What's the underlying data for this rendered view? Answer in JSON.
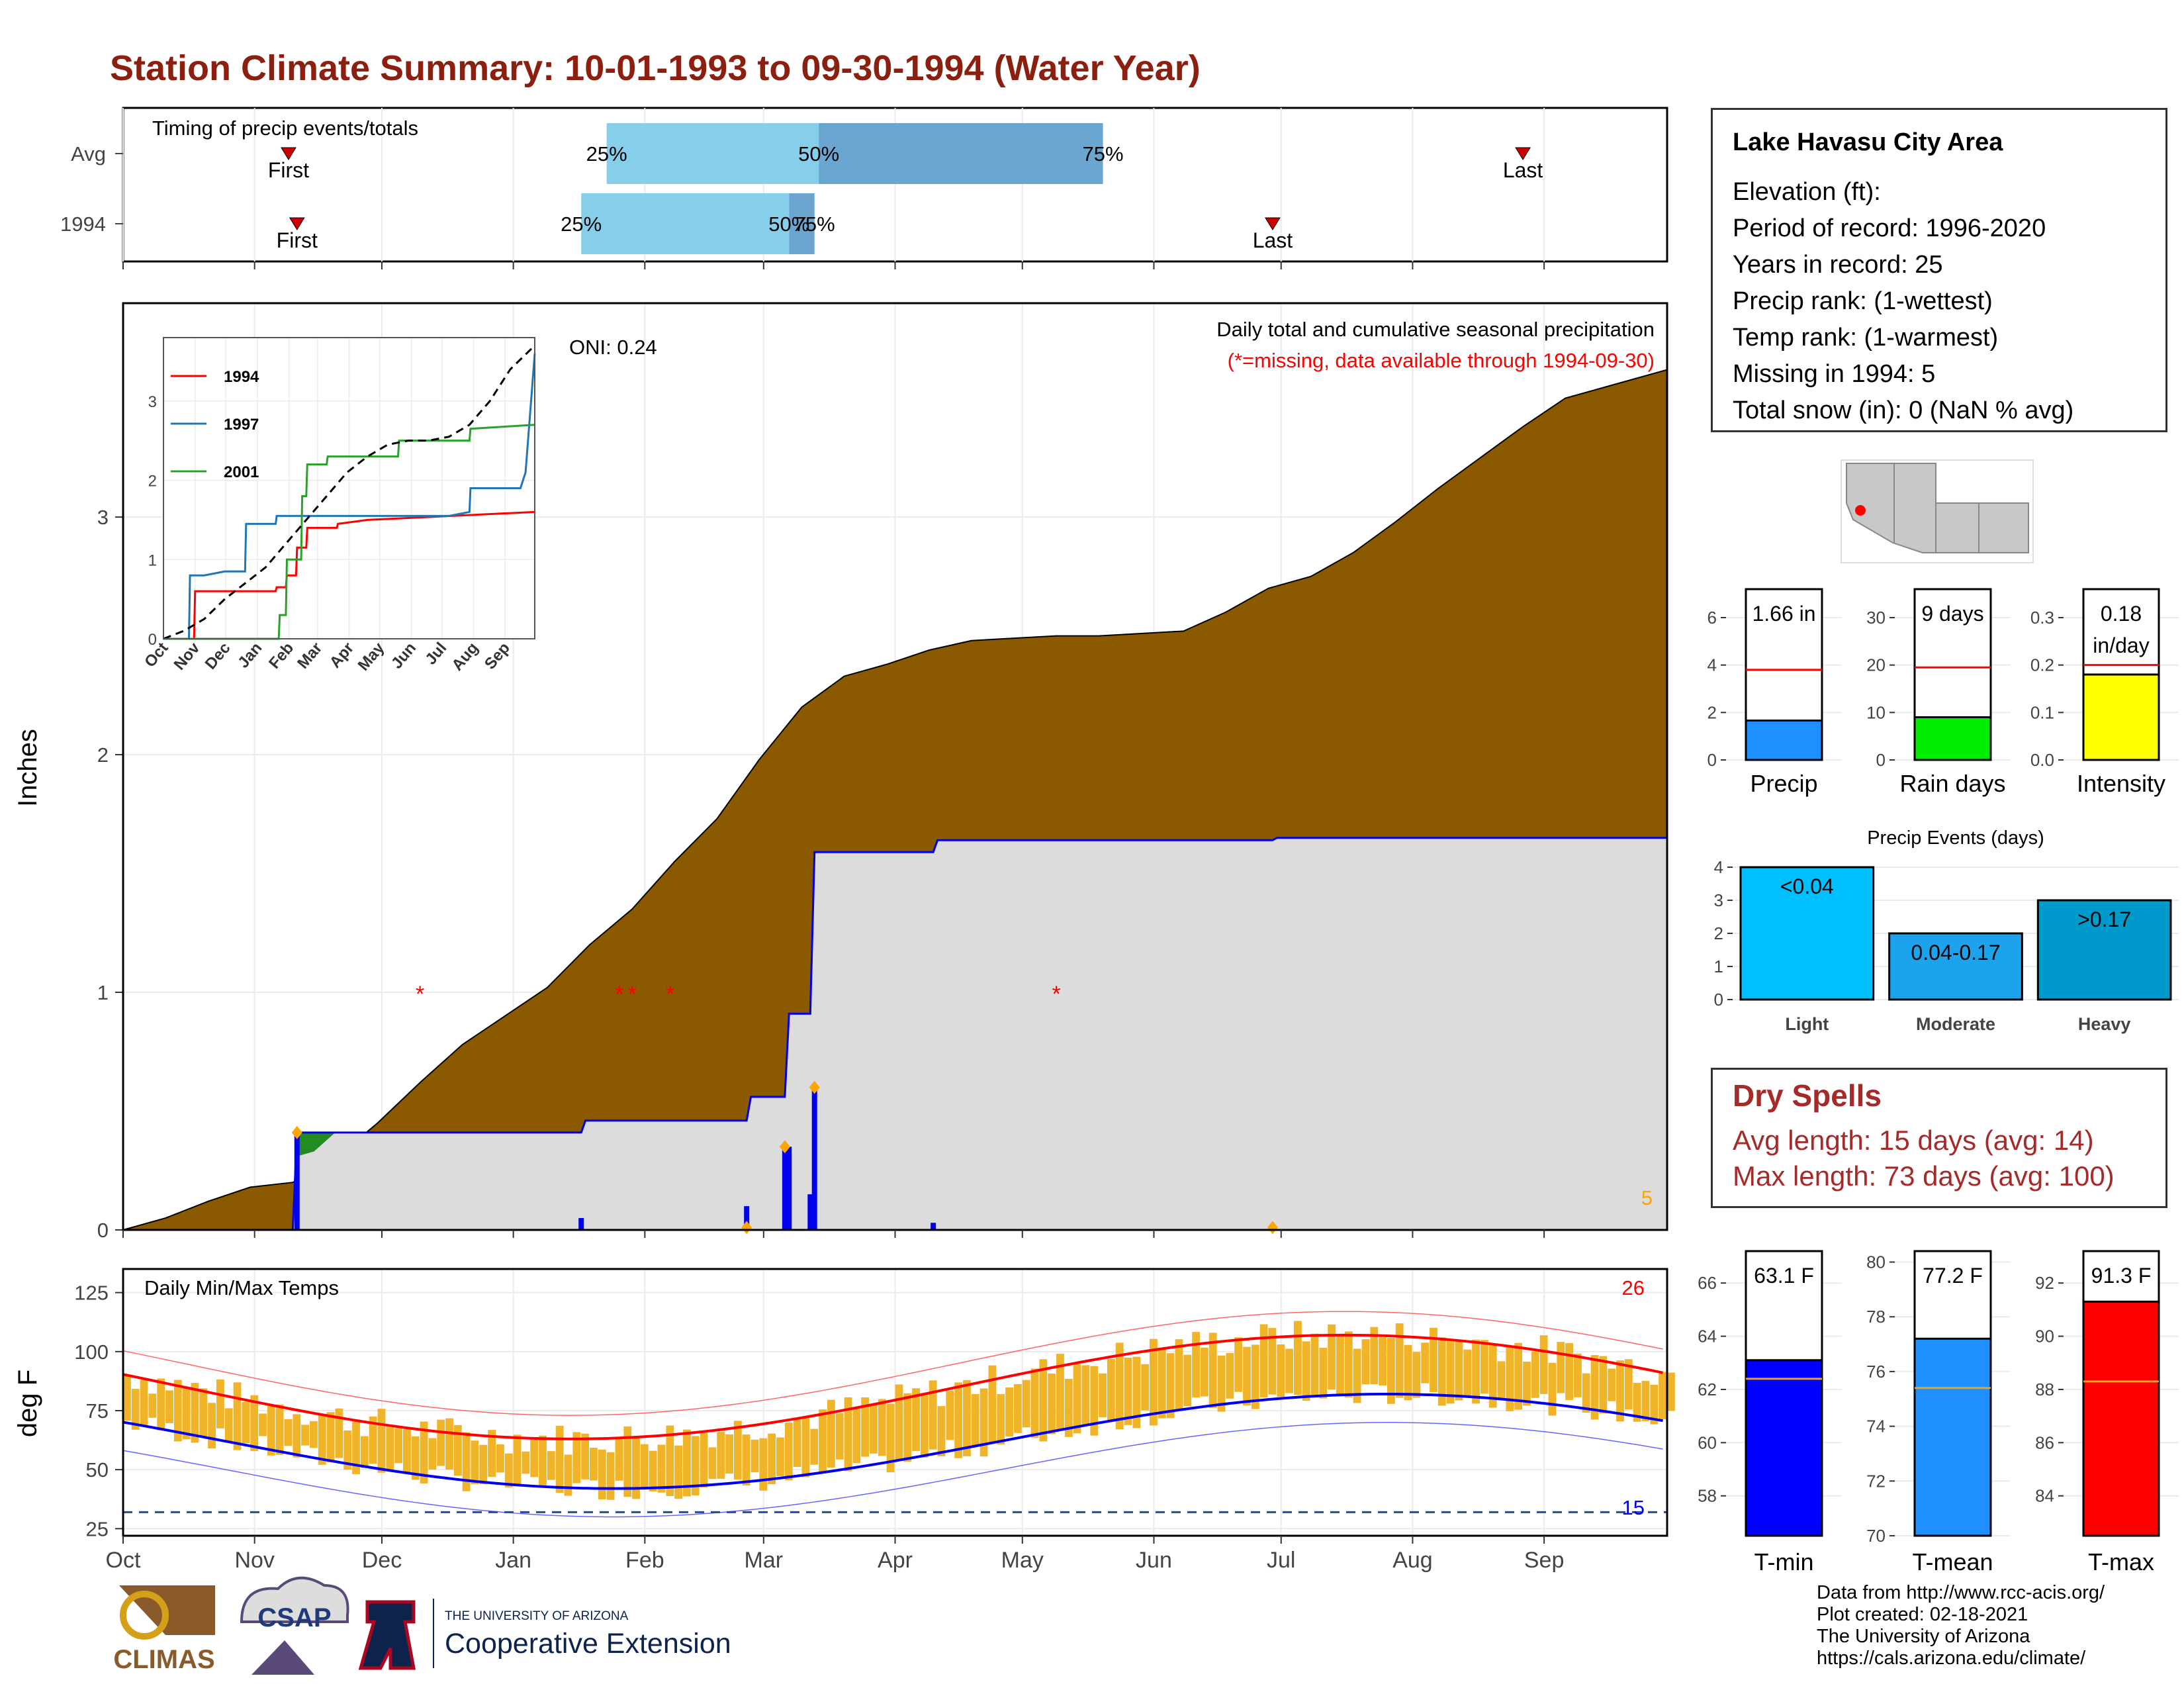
{
  "title": "Station Climate Summary: 10-01-1993 to 09-30-1994 (Water Year)",
  "colors": {
    "title": "#8b2010",
    "brown": "#8b5a00",
    "lightgray": "#dcdcdc",
    "blue": "#0000ee",
    "red": "#ff0000",
    "orange": "#ffa500",
    "gold": "#f0b429",
    "bar_precip": "#1e90ff",
    "bar_raindays": "#00ee00",
    "bar_intensity": "#ffff00",
    "bar_light": "#00bfff",
    "bar_moderate": "#1ca3ec",
    "bar_heavy": "#0099cc"
  },
  "station": {
    "name": "Lake Havasu City Area",
    "lines": [
      "Elevation (ft):",
      "Period of record: 1996-2020",
      "Years in record: 25",
      "Precip rank:  (1-wettest)",
      "Temp rank:  (1-warmest)",
      "Missing in 1994: 5",
      "Total snow (in): 0 (NaN % avg)"
    ]
  },
  "dry_spells": {
    "title": "Dry Spells",
    "avg": "Avg length: 15 days (avg: 14)",
    "max": "Max length: 73 days (avg: 100)"
  },
  "credits": [
    "Data from http://www.rcc-acis.org/",
    "Plot created: 02-18-2021",
    "The University of Arizona",
    "https://cals.arizona.edu/climate/"
  ],
  "logos": {
    "climas": "CLIMAS",
    "csap": "CSAP",
    "ua_small": "THE UNIVERSITY OF ARIZONA",
    "ua_big": "Cooperative Extension"
  },
  "chart_data": [
    {
      "type": "timeline",
      "title": "Timing of precip events/totals",
      "rows": [
        {
          "label": "Avg",
          "first": "First",
          "last": "Last",
          "first_day": 39,
          "last_day": 330,
          "q25_day": 114,
          "q50_day": 164,
          "q75_day": 231,
          "q25_label": "25%",
          "q50_label": "50%",
          "q75_label": "75%"
        },
        {
          "label": "1994",
          "first": "First",
          "last": "Last",
          "first_day": 41,
          "last_day": 271,
          "q25_day": 108,
          "q50_day": 157,
          "q75_day": 163,
          "q25_label": "25%",
          "q50_label": "50%",
          "q75_label": "75%"
        }
      ]
    },
    {
      "type": "area",
      "title": "Daily total and cumulative seasonal precipitation",
      "subtitle": "(*=missing, data available through 1994-09-30)",
      "annotation": "ONI: 0.24",
      "ylabel": "Inches",
      "ylim": [
        0,
        3.9
      ],
      "yticks": [
        0,
        1,
        2,
        3
      ],
      "missing_marker": "*",
      "missing_days": [
        70,
        117,
        120,
        129,
        220
      ],
      "missing_count": "5",
      "avg_cumulative": {
        "x": [
          0,
          10,
          20,
          30,
          40,
          50,
          60,
          70,
          80,
          90,
          100,
          110,
          120,
          130,
          140,
          150,
          160,
          170,
          180,
          190,
          200,
          210,
          220,
          230,
          240,
          250,
          260,
          270,
          280,
          290,
          300,
          310,
          320,
          330,
          340,
          350,
          364
        ],
        "values": [
          0,
          0.05,
          0.12,
          0.18,
          0.2,
          0.3,
          0.45,
          0.62,
          0.78,
          0.9,
          1.02,
          1.2,
          1.35,
          1.55,
          1.73,
          1.98,
          2.2,
          2.33,
          2.38,
          2.44,
          2.48,
          2.49,
          2.5,
          2.5,
          2.51,
          2.52,
          2.6,
          2.7,
          2.75,
          2.85,
          2.98,
          3.12,
          3.25,
          3.38,
          3.5,
          3.55,
          3.62
        ]
      },
      "cumulative_1994": {
        "x": [
          0,
          40,
          41,
          61,
          108,
          109,
          147,
          148,
          156,
          157,
          162,
          163,
          191,
          192,
          271,
          272,
          364
        ],
        "values": [
          0,
          0,
          0.41,
          0.41,
          0.41,
          0.46,
          0.46,
          0.56,
          0.56,
          0.91,
          0.91,
          1.59,
          1.59,
          1.64,
          1.64,
          1.65,
          1.65
        ]
      },
      "daily_bars": {
        "x": [
          41,
          108,
          147,
          156,
          157,
          162,
          163,
          191
        ],
        "values": [
          0.41,
          0.05,
          0.1,
          0.35,
          0.35,
          0.15,
          0.6,
          0.03
        ]
      },
      "event_markers": {
        "x": [
          41,
          147,
          156,
          163,
          271
        ],
        "values": [
          0.41,
          0.01,
          0.35,
          0.6,
          0.01
        ]
      },
      "months": [
        "Oct",
        "Nov",
        "Dec",
        "Jan",
        "Feb",
        "Mar",
        "Apr",
        "May",
        "Jun",
        "Jul",
        "Aug",
        "Sep"
      ]
    },
    {
      "type": "line",
      "title": "Precip inset",
      "series": [
        {
          "name": "1994",
          "color": "#ff0000",
          "x": [
            0,
            30,
            31,
            110,
            111,
            120,
            121,
            130,
            131,
            140,
            141,
            170,
            171,
            200,
            364
          ],
          "values": [
            0,
            0,
            0.6,
            0.6,
            0.65,
            0.65,
            0.8,
            0.8,
            1.15,
            1.15,
            1.4,
            1.4,
            1.45,
            1.5,
            1.6
          ]
        },
        {
          "name": "1997",
          "color": "#1f77b4",
          "x": [
            0,
            25,
            26,
            40,
            60,
            80,
            81,
            110,
            111,
            140,
            200,
            280,
            300,
            301,
            350,
            355,
            364
          ],
          "values": [
            0,
            0,
            0.8,
            0.8,
            0.85,
            0.85,
            1.45,
            1.45,
            1.55,
            1.55,
            1.55,
            1.55,
            1.6,
            1.9,
            1.9,
            2.1,
            3.6
          ]
        },
        {
          "name": "2001",
          "color": "#2ca02c",
          "x": [
            0,
            113,
            114,
            120,
            121,
            135,
            136,
            140,
            141,
            160,
            161,
            230,
            231,
            300,
            301,
            364
          ],
          "values": [
            0,
            0,
            0.3,
            0.3,
            1.0,
            1.0,
            1.8,
            1.8,
            2.2,
            2.2,
            2.3,
            2.3,
            2.5,
            2.5,
            2.65,
            2.7
          ]
        },
        {
          "name": "",
          "dashed": true,
          "color": "#000000",
          "x": [
            0,
            20,
            40,
            60,
            80,
            100,
            120,
            140,
            160,
            180,
            200,
            220,
            240,
            260,
            280,
            300,
            320,
            340,
            364
          ],
          "values": [
            0,
            0.1,
            0.25,
            0.5,
            0.7,
            0.9,
            1.2,
            1.5,
            1.8,
            2.1,
            2.3,
            2.45,
            2.5,
            2.5,
            2.55,
            2.7,
            3.0,
            3.4,
            3.7
          ]
        }
      ],
      "ylim": [
        0,
        3.8
      ],
      "yticks": [
        0,
        1,
        2,
        3
      ],
      "months": [
        "Oct",
        "Nov",
        "Dec",
        "Jan",
        "Feb",
        "Mar",
        "Apr",
        "May",
        "Jun",
        "Jul",
        "Aug",
        "Sep"
      ]
    },
    {
      "type": "bar",
      "title": "Daily Min/Max Temps",
      "ylabel": "deg F",
      "ylim": [
        22,
        135
      ],
      "yticks": [
        25,
        50,
        75,
        100,
        125
      ],
      "hot_days": "26",
      "cold_days": "15",
      "freeze_line": 32,
      "months": [
        "Oct",
        "Nov",
        "Dec",
        "Jan",
        "Feb",
        "Mar",
        "Apr",
        "May",
        "Jun",
        "Jul",
        "Aug",
        "Sep"
      ]
    },
    {
      "type": "bar",
      "categories": [
        "Precip"
      ],
      "values": [
        1.66
      ],
      "avg": 3.8,
      "value_label": "1.66 in",
      "ylim": [
        0,
        7.2
      ],
      "yticks": [
        0,
        2,
        4,
        6
      ]
    },
    {
      "type": "bar",
      "categories": [
        "Rain days"
      ],
      "values": [
        9
      ],
      "avg": 19.5,
      "value_label": "9 days",
      "ylim": [
        0,
        36
      ],
      "yticks": [
        0,
        10,
        20,
        30
      ]
    },
    {
      "type": "bar",
      "categories": [
        "Intensity"
      ],
      "values": [
        0.18
      ],
      "avg": 0.2,
      "value_label": "0.18 in/day",
      "ylim": [
        0,
        0.36
      ],
      "yticks": [
        0.0,
        0.1,
        0.2,
        0.3
      ]
    },
    {
      "type": "bar",
      "title": "Precip Events (days)",
      "categories": [
        "Light",
        "Moderate",
        "Heavy"
      ],
      "bar_labels": [
        "<0.04",
        "0.04-0.17",
        ">0.17"
      ],
      "values": [
        4,
        2,
        3
      ],
      "ylim": [
        0,
        4.2
      ],
      "yticks": [
        0,
        1,
        2,
        3,
        4
      ]
    },
    {
      "type": "bar",
      "categories": [
        "T-min"
      ],
      "values": [
        63.1
      ],
      "avg": 62.4,
      "value_label": "63.1 F",
      "ylim": [
        56.5,
        67.2
      ],
      "yticks": [
        58,
        60,
        62,
        64,
        66
      ]
    },
    {
      "type": "bar",
      "categories": [
        "T-mean"
      ],
      "values": [
        77.2
      ],
      "avg": 75.4,
      "value_label": "77.2 F",
      "ylim": [
        70,
        80.4
      ],
      "yticks": [
        70,
        72,
        74,
        76,
        78,
        80
      ]
    },
    {
      "type": "bar",
      "categories": [
        "T-max"
      ],
      "values": [
        91.3
      ],
      "avg": 88.3,
      "value_label": "91.3 F",
      "ylim": [
        82.5,
        93.2
      ],
      "yticks": [
        84,
        86,
        88,
        90,
        92
      ]
    }
  ]
}
